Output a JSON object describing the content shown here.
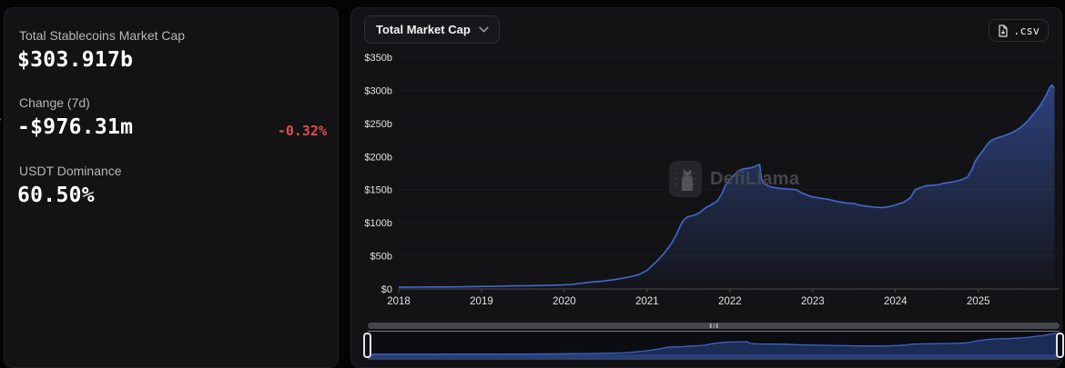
{
  "sidebar": {
    "collapse_icon": "›",
    "metrics": [
      {
        "label": "Total Stablecoins Market Cap",
        "value": "$303.917b"
      },
      {
        "label": "Change (7d)",
        "value": "-$976.31m",
        "change_pct": "-0.32%"
      },
      {
        "label": "USDT Dominance",
        "value": "60.50%"
      }
    ]
  },
  "toolbar": {
    "dropdown_label": "Total Market Cap",
    "csv_label": ".csv"
  },
  "watermark_text": "DefiLlama",
  "colors": {
    "negative": "#e04f4f",
    "line": "#4169cf",
    "area_top": "rgba(65,105,207,0.55)",
    "area_bottom": "rgba(65,105,207,0.02)",
    "grid": "#1b1d22",
    "axis": "#4a4c50",
    "axis_text": "#e3e3e3",
    "nav_fill": "#1b2c55",
    "nav_line": "#3f63c2",
    "nav_strip": "#273f79"
  },
  "chart_data": {
    "type": "area",
    "title": "Total Market Cap",
    "series_name": "Total Stablecoins Market Cap",
    "unit": "USD billions",
    "grid": true,
    "legend": null,
    "xlim": [
      2018,
      2025.97
    ],
    "ylim": [
      0,
      350
    ],
    "y_ticks": [
      {
        "v": 0,
        "label": "$0"
      },
      {
        "v": 50,
        "label": "$50b"
      },
      {
        "v": 100,
        "label": "$100b"
      },
      {
        "v": 150,
        "label": "$150b"
      },
      {
        "v": 200,
        "label": "$200b"
      },
      {
        "v": 250,
        "label": "$250b"
      },
      {
        "v": 300,
        "label": "$300b"
      },
      {
        "v": 350,
        "label": "$350b"
      }
    ],
    "x_ticks": [
      {
        "v": 2018,
        "label": "2018"
      },
      {
        "v": 2019,
        "label": "2019"
      },
      {
        "v": 2020,
        "label": "2020"
      },
      {
        "v": 2021,
        "label": "2021"
      },
      {
        "v": 2022,
        "label": "2022"
      },
      {
        "v": 2023,
        "label": "2023"
      },
      {
        "v": 2024,
        "label": "2024"
      },
      {
        "v": 2025,
        "label": "2025"
      }
    ],
    "points": [
      [
        2018.0,
        2.6
      ],
      [
        2018.2,
        2.8
      ],
      [
        2018.4,
        3.0
      ],
      [
        2018.6,
        3.0
      ],
      [
        2018.8,
        3.3
      ],
      [
        2019.0,
        3.7
      ],
      [
        2019.2,
        4.1
      ],
      [
        2019.4,
        4.6
      ],
      [
        2019.6,
        4.9
      ],
      [
        2019.8,
        5.3
      ],
      [
        2020.0,
        6.2
      ],
      [
        2020.1,
        6.8
      ],
      [
        2020.2,
        8.5
      ],
      [
        2020.3,
        10.0
      ],
      [
        2020.45,
        11.5
      ],
      [
        2020.6,
        14.0
      ],
      [
        2020.7,
        16.0
      ],
      [
        2020.8,
        18.5
      ],
      [
        2020.9,
        21.5
      ],
      [
        2021.0,
        28.0
      ],
      [
        2021.05,
        34
      ],
      [
        2021.1,
        40
      ],
      [
        2021.15,
        46
      ],
      [
        2021.2,
        53
      ],
      [
        2021.25,
        61
      ],
      [
        2021.3,
        70
      ],
      [
        2021.35,
        81
      ],
      [
        2021.4,
        95
      ],
      [
        2021.44,
        104
      ],
      [
        2021.48,
        108
      ],
      [
        2021.52,
        110
      ],
      [
        2021.56,
        111
      ],
      [
        2021.6,
        113
      ],
      [
        2021.64,
        116
      ],
      [
        2021.68,
        120
      ],
      [
        2021.72,
        124
      ],
      [
        2021.76,
        126
      ],
      [
        2021.8,
        129
      ],
      [
        2021.85,
        133
      ],
      [
        2021.9,
        143
      ],
      [
        2021.95,
        157
      ],
      [
        2022.0,
        166
      ],
      [
        2022.05,
        172
      ],
      [
        2022.1,
        178
      ],
      [
        2022.15,
        181
      ],
      [
        2022.2,
        182
      ],
      [
        2022.25,
        183
      ],
      [
        2022.3,
        185
      ],
      [
        2022.33,
        187
      ],
      [
        2022.36,
        188
      ],
      [
        2022.38,
        168
      ],
      [
        2022.4,
        160
      ],
      [
        2022.44,
        157
      ],
      [
        2022.5,
        154
      ],
      [
        2022.6,
        152
      ],
      [
        2022.7,
        151
      ],
      [
        2022.8,
        150
      ],
      [
        2022.87,
        145
      ],
      [
        2022.95,
        141
      ],
      [
        2023.0,
        139
      ],
      [
        2023.1,
        137
      ],
      [
        2023.2,
        135
      ],
      [
        2023.3,
        132
      ],
      [
        2023.4,
        130
      ],
      [
        2023.5,
        129
      ],
      [
        2023.55,
        127
      ],
      [
        2023.65,
        125
      ],
      [
        2023.75,
        123.5
      ],
      [
        2023.85,
        123
      ],
      [
        2023.95,
        125
      ],
      [
        2024.0,
        127
      ],
      [
        2024.1,
        131
      ],
      [
        2024.18,
        138
      ],
      [
        2024.24,
        150
      ],
      [
        2024.3,
        153
      ],
      [
        2024.38,
        156
      ],
      [
        2024.5,
        157
      ],
      [
        2024.6,
        160
      ],
      [
        2024.7,
        162
      ],
      [
        2024.8,
        165
      ],
      [
        2024.87,
        169
      ],
      [
        2024.92,
        180
      ],
      [
        2024.96,
        192
      ],
      [
        2025.0,
        200
      ],
      [
        2025.05,
        208
      ],
      [
        2025.1,
        217
      ],
      [
        2025.15,
        224
      ],
      [
        2025.2,
        227
      ],
      [
        2025.25,
        229
      ],
      [
        2025.3,
        231
      ],
      [
        2025.35,
        233
      ],
      [
        2025.4,
        236
      ],
      [
        2025.45,
        239
      ],
      [
        2025.5,
        243
      ],
      [
        2025.55,
        248
      ],
      [
        2025.6,
        254
      ],
      [
        2025.65,
        262
      ],
      [
        2025.7,
        269
      ],
      [
        2025.74,
        276
      ],
      [
        2025.78,
        284
      ],
      [
        2025.82,
        293
      ],
      [
        2025.85,
        301
      ],
      [
        2025.87,
        306
      ],
      [
        2025.89,
        308
      ],
      [
        2025.91,
        304
      ],
      [
        2025.92,
        303.9
      ]
    ]
  }
}
